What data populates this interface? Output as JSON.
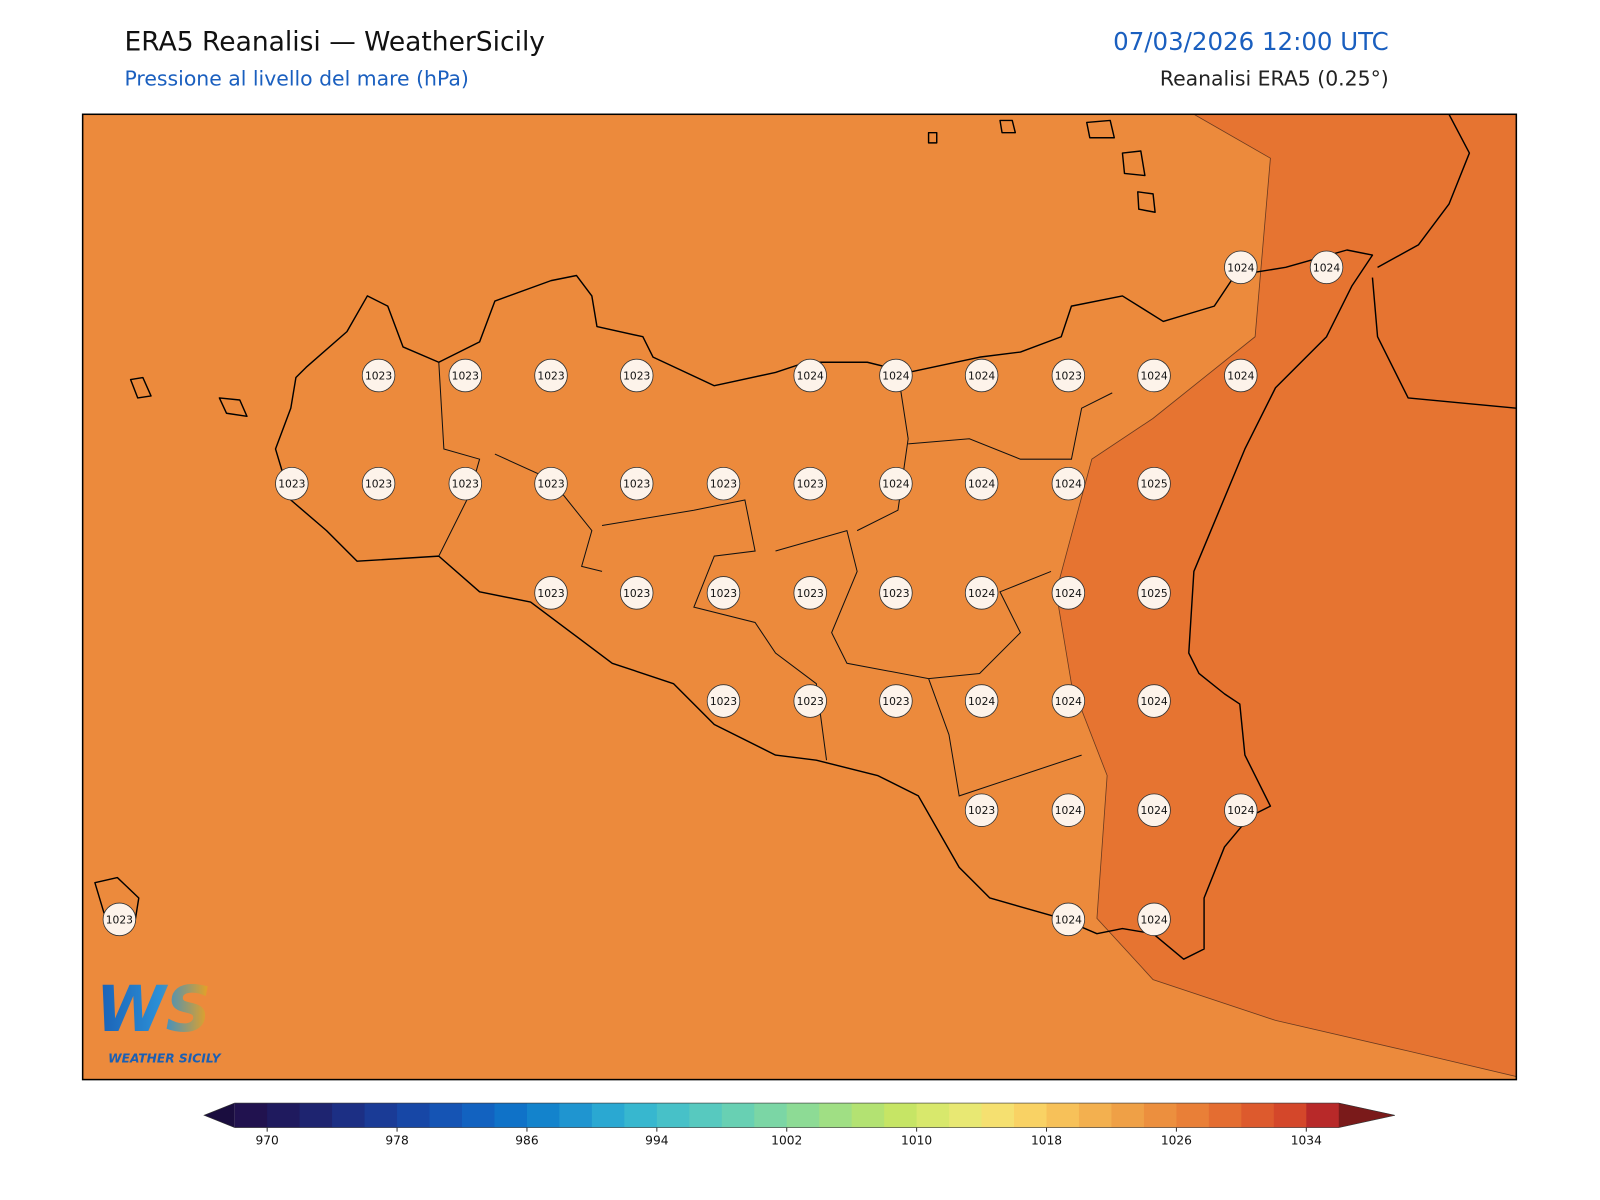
{
  "header": {
    "title": "ERA5 Reanalisi — WeatherSicily",
    "subtitle": "Pressione al livello del mare (hPa)",
    "datetime": "07/03/2026 12:00 UTC",
    "source": "Reanalisi ERA5 (0.25°)"
  },
  "stations": [
    1024,
    1024,
    1023,
    1023,
    1023,
    1023,
    1024,
    1024,
    1024,
    1023,
    1024,
    1024,
    1023,
    1023,
    1023,
    1023,
    1023,
    1023,
    1023,
    1024,
    1024,
    1024,
    1025,
    1023,
    1023,
    1023,
    1023,
    1023,
    1024,
    1024,
    1025,
    1023,
    1023,
    1023,
    1024,
    1024,
    1024,
    1023,
    1024,
    1024,
    1024,
    1023,
    1024,
    1024
  ],
  "field_colors": {
    "low": "#ec8a3c",
    "high": "#e67431"
  },
  "colorbar": {
    "range": [
      968,
      1036
    ],
    "ticks": [
      970,
      978,
      986,
      994,
      1002,
      1010,
      1018,
      1026,
      1034
    ],
    "under": "#1a0d3f",
    "over": "#7a1a1a",
    "colors": [
      "#21124f",
      "#1f1a5e",
      "#1e2470",
      "#1c2f84",
      "#1a3b96",
      "#1747a6",
      "#1554b4",
      "#1262c0",
      "#0f72c8",
      "#1383cc",
      "#1f95d0",
      "#2aa8d2",
      "#37b7cf",
      "#47c1c8",
      "#57c9bf",
      "#68d0b3",
      "#7bd6a5",
      "#8ddb95",
      "#a0df84",
      "#b3e272",
      "#c6e565",
      "#d8e86c",
      "#e8e873",
      "#f5e070",
      "#f9d264",
      "#f7c159",
      "#f3b04f",
      "#efa046",
      "#ec8f3e",
      "#e97f37",
      "#e46d31",
      "#dd5a2d",
      "#d4472a",
      "#b82929"
    ]
  },
  "logo": {
    "mark": "WS",
    "name": "WEATHER SICILY"
  }
}
